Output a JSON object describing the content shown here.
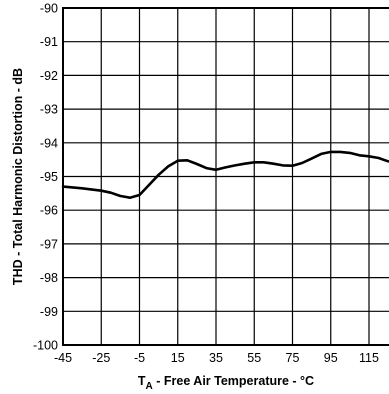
{
  "chart_data": {
    "type": "line",
    "title": "",
    "xlabel": {
      "main": "T",
      "subscript": "A",
      "rest": " - Free Air Temperature - °C"
    },
    "ylabel": "THD - Total Harmonic Distortion - dB",
    "xlim": [
      -45,
      125
    ],
    "ylim": [
      -100,
      -90
    ],
    "x_ticks": [
      -45,
      -25,
      -5,
      15,
      35,
      55,
      75,
      95,
      115
    ],
    "y_ticks": [
      -100,
      -99,
      -98,
      -97,
      -96,
      -95,
      -94,
      -93,
      -92,
      -91,
      -90
    ],
    "x_tick_labels": [
      "-45",
      "-25",
      "-5",
      "15",
      "35",
      "55",
      "75",
      "95",
      "115"
    ],
    "y_tick_labels": [
      "-100",
      "-99",
      "-98",
      "-97",
      "-96",
      "-95",
      "-94",
      "-93",
      "-92",
      "-91",
      "-90"
    ],
    "grid": true,
    "series": [
      {
        "x": [
          -45,
          -35,
          -25,
          -20,
          -15,
          -10,
          -5,
          0,
          5,
          10,
          15,
          20,
          25,
          30,
          35,
          40,
          45,
          50,
          55,
          60,
          65,
          70,
          75,
          80,
          85,
          90,
          95,
          100,
          105,
          110,
          115,
          120,
          125
        ],
        "y": [
          -95.3,
          -95.35,
          -95.42,
          -95.48,
          -95.58,
          -95.63,
          -95.55,
          -95.25,
          -94.95,
          -94.7,
          -94.53,
          -94.52,
          -94.63,
          -94.75,
          -94.8,
          -94.73,
          -94.67,
          -94.62,
          -94.58,
          -94.58,
          -94.62,
          -94.67,
          -94.68,
          -94.6,
          -94.47,
          -94.33,
          -94.27,
          -94.27,
          -94.3,
          -94.37,
          -94.4,
          -94.45,
          -94.55
        ],
        "color": "#000000"
      }
    ]
  }
}
